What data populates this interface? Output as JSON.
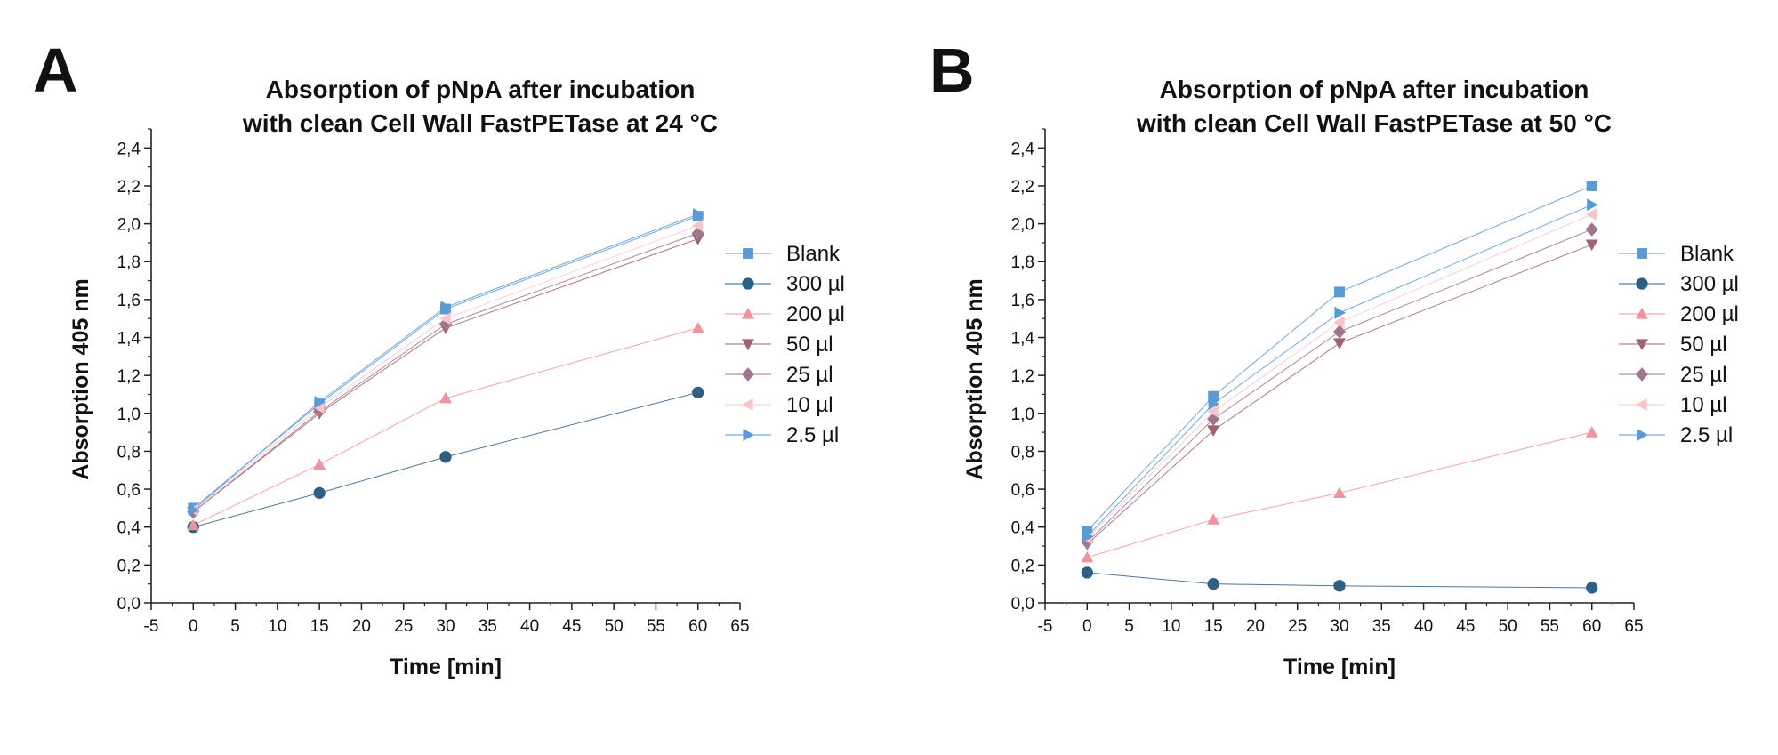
{
  "chart_data": [
    {
      "type": "line",
      "panel_label": "A",
      "title": [
        "Absorption of pNpA after incubation",
        "with clean Cell Wall FastPETase at 24 °C"
      ],
      "xlabel": "Time [min]",
      "ylabel": "Absorption 405 nm",
      "xlim": [
        -5,
        65
      ],
      "ylim": [
        0,
        2.5
      ],
      "xticks": [
        -5,
        0,
        5,
        10,
        15,
        20,
        25,
        30,
        35,
        40,
        45,
        50,
        55,
        60,
        65
      ],
      "yticks": [
        0,
        0.2,
        0.4,
        0.6,
        0.8,
        1.0,
        1.2,
        1.4,
        1.6,
        1.8,
        2.0,
        2.2,
        2.4
      ],
      "xtick_labels": [
        "-5",
        "0",
        "5",
        "10",
        "15",
        "20",
        "25",
        "30",
        "35",
        "40",
        "45",
        "50",
        "55",
        "60",
        "65"
      ],
      "ytick_labels": [
        "0,0",
        "0,2",
        "0,4",
        "0,6",
        "0,8",
        "1,0",
        "1,2",
        "1,4",
        "1,6",
        "1,8",
        "2,0",
        "2,2",
        "2,4"
      ],
      "x": [
        0,
        15,
        30,
        60
      ],
      "legend_position": "right",
      "series": [
        {
          "name": "Blank",
          "marker": "square",
          "color": "#5b9bd5",
          "values": [
            0.5,
            1.05,
            1.55,
            2.04
          ]
        },
        {
          "name": "300 µl",
          "marker": "circle",
          "color": "#2e5f85",
          "values": [
            0.4,
            0.58,
            0.77,
            1.11
          ]
        },
        {
          "name": "200 µl",
          "marker": "triangle-up",
          "color": "#f0939e",
          "values": [
            0.41,
            0.73,
            1.08,
            1.45
          ]
        },
        {
          "name": "50 µl",
          "marker": "triangle-down",
          "color": "#a3606f",
          "values": [
            0.48,
            1.0,
            1.45,
            1.92
          ]
        },
        {
          "name": "25 µl",
          "marker": "diamond",
          "color": "#a0758d",
          "values": [
            0.48,
            1.01,
            1.47,
            1.95
          ]
        },
        {
          "name": "10 µl",
          "marker": "triangle-left",
          "color": "#f7c6cb",
          "values": [
            0.49,
            1.03,
            1.5,
            1.99
          ]
        },
        {
          "name": "2.5 µl",
          "marker": "triangle-right",
          "color": "#5b9bd5",
          "values": [
            0.49,
            1.06,
            1.56,
            2.05
          ]
        }
      ]
    },
    {
      "type": "line",
      "panel_label": "B",
      "title": [
        "Absorption of pNpA after incubation",
        "with clean Cell Wall FastPETase at 50 °C"
      ],
      "xlabel": "Time [min]",
      "ylabel": "Absorption 405 nm",
      "xlim": [
        -5,
        65
      ],
      "ylim": [
        0,
        2.5
      ],
      "xticks": [
        -5,
        0,
        5,
        10,
        15,
        20,
        25,
        30,
        35,
        40,
        45,
        50,
        55,
        60,
        65
      ],
      "yticks": [
        0,
        0.2,
        0.4,
        0.6,
        0.8,
        1.0,
        1.2,
        1.4,
        1.6,
        1.8,
        2.0,
        2.2,
        2.4
      ],
      "xtick_labels": [
        "-5",
        "0",
        "5",
        "10",
        "15",
        "20",
        "25",
        "30",
        "35",
        "40",
        "45",
        "50",
        "55",
        "60",
        "65"
      ],
      "ytick_labels": [
        "0,0",
        "0,2",
        "0,4",
        "0,6",
        "0,8",
        "1,0",
        "1,2",
        "1,4",
        "1,6",
        "1,8",
        "2,0",
        "2,2",
        "2,4"
      ],
      "x": [
        0,
        15,
        30,
        60
      ],
      "legend_position": "right",
      "series": [
        {
          "name": "Blank",
          "marker": "square",
          "color": "#5b9bd5",
          "values": [
            0.38,
            1.09,
            1.64,
            2.2
          ]
        },
        {
          "name": "300 µl",
          "marker": "circle",
          "color": "#2e5f85",
          "values": [
            0.16,
            0.1,
            0.09,
            0.08
          ]
        },
        {
          "name": "200 µl",
          "marker": "triangle-up",
          "color": "#f0939e",
          "values": [
            0.24,
            0.44,
            0.58,
            0.9
          ]
        },
        {
          "name": "50 µl",
          "marker": "triangle-down",
          "color": "#a3606f",
          "values": [
            0.31,
            0.91,
            1.37,
            1.89
          ]
        },
        {
          "name": "25 µl",
          "marker": "diamond",
          "color": "#a0758d",
          "values": [
            0.32,
            0.97,
            1.43,
            1.97
          ]
        },
        {
          "name": "10 µl",
          "marker": "triangle-left",
          "color": "#f7c6cb",
          "values": [
            0.34,
            1.01,
            1.48,
            2.05
          ]
        },
        {
          "name": "2.5 µl",
          "marker": "triangle-right",
          "color": "#5b9bd5",
          "values": [
            0.35,
            1.05,
            1.53,
            2.1
          ]
        }
      ]
    }
  ]
}
